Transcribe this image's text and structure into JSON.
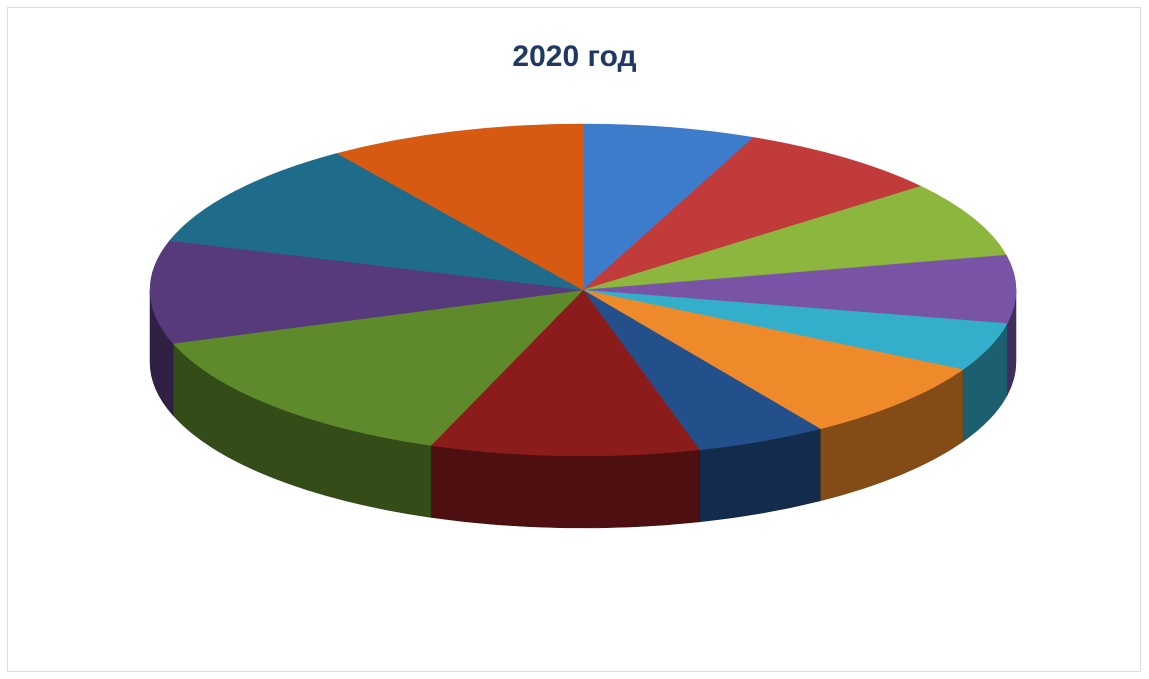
{
  "chart_data": {
    "type": "pie",
    "title": "2020 год",
    "values": [
      7.5,
      9.1,
      8.6,
      7.7,
      5.5,
      9.1,
      5.7,
      11.7,
      16.4,
      11.7,
      12.3,
      11.2
    ],
    "colors": [
      "#3d7ccb",
      "#c23b3b",
      "#8db63e",
      "#7954a6",
      "#33aecb",
      "#ef8a2a",
      "#234f8a",
      "#8c1c1c",
      "#5f8a2c",
      "#563a7c",
      "#1e6b8a",
      "#d65a12"
    ],
    "legend": "none",
    "style": "3d"
  }
}
